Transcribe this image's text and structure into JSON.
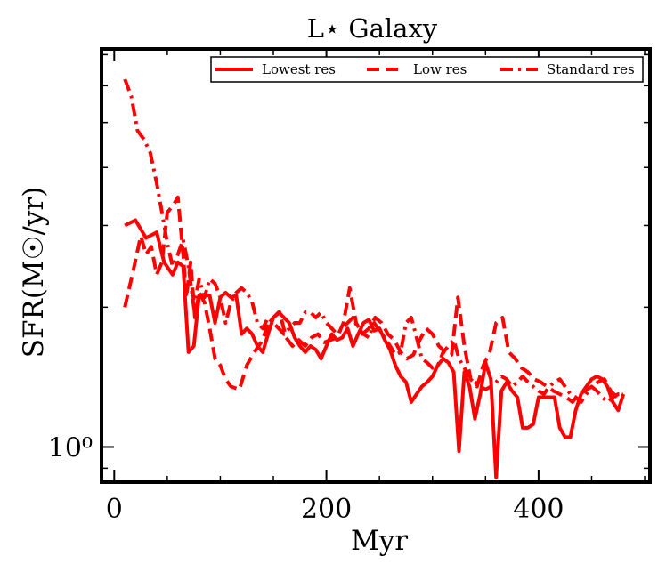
{
  "chart_data": {
    "type": "line",
    "title": "L⋆ Galaxy",
    "xlabel": "Myr",
    "ylabel": "SFR(M☉/yr)",
    "yscale": "log",
    "xlim": [
      -12,
      505
    ],
    "ylim": [
      0.84,
      7.2
    ],
    "xticks": [
      0,
      200,
      400
    ],
    "xtick_labels": [
      "0",
      "200",
      "400"
    ],
    "yticks": [
      1
    ],
    "ytick_labels": [
      "10⁰"
    ],
    "legend_position": "top-right",
    "line_color": "#ff0000",
    "series": [
      {
        "name": "Lowest res",
        "style": "solid",
        "x": [
          10,
          20,
          30,
          40,
          47,
          55,
          60,
          65,
          70,
          75,
          80,
          85,
          90,
          95,
          100,
          105,
          110,
          115,
          120,
          125,
          130,
          135,
          140,
          145,
          150,
          155,
          160,
          165,
          170,
          175,
          180,
          185,
          190,
          195,
          200,
          205,
          210,
          215,
          220,
          225,
          230,
          235,
          240,
          245,
          250,
          255,
          260,
          265,
          270,
          275,
          280,
          285,
          290,
          295,
          300,
          305,
          310,
          315,
          320,
          325,
          330,
          335,
          340,
          345,
          350,
          355,
          360,
          365,
          370,
          375,
          380,
          385,
          390,
          395,
          400,
          405,
          410,
          415,
          420,
          425,
          430,
          435,
          440,
          445,
          450,
          455,
          460,
          465,
          470,
          475,
          480
        ],
        "values": [
          3.0,
          3.08,
          2.82,
          2.9,
          2.5,
          2.35,
          2.5,
          2.45,
          1.6,
          1.65,
          2.12,
          2.12,
          2.12,
          1.85,
          2.1,
          2.15,
          2.1,
          2.12,
          1.75,
          1.8,
          1.75,
          1.65,
          1.6,
          1.75,
          1.9,
          1.95,
          1.9,
          1.85,
          1.72,
          1.65,
          1.6,
          1.65,
          1.62,
          1.55,
          1.65,
          1.75,
          1.7,
          1.72,
          1.8,
          1.65,
          1.75,
          1.85,
          1.88,
          1.78,
          1.8,
          1.7,
          1.62,
          1.5,
          1.42,
          1.38,
          1.25,
          1.3,
          1.35,
          1.38,
          1.42,
          1.5,
          1.55,
          1.52,
          1.45,
          0.98,
          1.45,
          1.35,
          1.15,
          1.3,
          1.52,
          1.4,
          0.86,
          1.32,
          1.38,
          1.32,
          1.28,
          1.1,
          1.1,
          1.12,
          1.28,
          1.28,
          1.28,
          1.28,
          1.1,
          1.05,
          1.05,
          1.2,
          1.3,
          1.35,
          1.4,
          1.42,
          1.4,
          1.35,
          1.25,
          1.2,
          1.3
        ]
      },
      {
        "name": "Low res",
        "style": "dashed",
        "x": [
          10,
          18,
          25,
          30,
          35,
          40,
          45,
          50,
          55,
          60,
          65,
          68,
          72,
          76,
          80,
          85,
          90,
          95,
          100,
          105,
          110,
          118,
          125,
          132,
          140,
          145,
          150,
          156,
          162,
          168,
          174,
          180,
          186,
          192,
          198,
          204,
          210,
          216,
          222,
          228,
          234,
          240,
          246,
          252,
          258,
          264,
          270,
          276,
          282,
          288,
          294,
          300,
          306,
          312,
          318,
          324,
          330,
          336,
          342,
          348,
          354,
          360,
          366,
          372,
          378,
          384,
          390,
          396,
          402,
          408,
          414,
          420,
          426,
          432,
          438,
          444,
          450,
          456,
          462,
          468,
          474,
          480
        ],
        "values": [
          2.0,
          2.4,
          2.85,
          2.6,
          2.7,
          2.35,
          2.5,
          3.2,
          3.3,
          3.45,
          2.6,
          2.1,
          2.5,
          1.9,
          2.15,
          2.05,
          1.8,
          1.55,
          1.5,
          1.4,
          1.35,
          1.33,
          1.5,
          1.6,
          1.7,
          1.85,
          1.9,
          1.95,
          1.72,
          1.65,
          1.7,
          1.65,
          1.72,
          1.75,
          1.68,
          1.7,
          1.72,
          1.85,
          2.2,
          1.85,
          1.75,
          1.8,
          1.9,
          1.85,
          1.75,
          1.7,
          1.6,
          1.55,
          1.58,
          1.7,
          1.8,
          1.75,
          1.65,
          1.6,
          1.58,
          2.1,
          1.65,
          1.4,
          1.35,
          1.5,
          1.6,
          1.85,
          1.9,
          1.6,
          1.55,
          1.48,
          1.45,
          1.4,
          1.38,
          1.35,
          1.32,
          1.3,
          1.28,
          1.25,
          1.3,
          1.32,
          1.35,
          1.38,
          1.4,
          1.32,
          1.28,
          1.3
        ]
      },
      {
        "name": "Standard res",
        "style": "dashdot",
        "x": [
          10,
          16,
          22,
          28,
          34,
          40,
          45,
          50,
          55,
          60,
          65,
          70,
          75,
          80,
          85,
          90,
          95,
          100,
          105,
          110,
          115,
          120,
          125,
          130,
          135,
          140,
          145,
          150,
          155,
          160,
          165,
          170,
          175,
          180,
          185,
          190,
          195,
          200,
          205,
          210,
          215,
          220,
          225,
          230,
          235,
          240,
          245,
          250,
          255,
          260,
          265,
          270,
          275,
          280,
          285,
          290,
          295,
          300,
          305,
          310,
          315,
          320,
          325,
          330,
          335,
          340,
          345,
          350,
          355,
          360,
          365,
          370,
          375,
          380,
          385,
          390,
          395,
          400,
          405,
          410,
          415,
          420,
          425,
          430,
          435,
          440,
          445,
          450,
          455,
          460,
          465,
          470,
          475,
          480
        ],
        "values": [
          6.2,
          5.7,
          4.8,
          4.6,
          4.3,
          3.7,
          3.2,
          2.75,
          2.45,
          2.6,
          2.8,
          2.45,
          2.0,
          2.3,
          2.1,
          2.3,
          2.25,
          2.1,
          1.85,
          2.05,
          2.15,
          2.2,
          2.15,
          2.05,
          1.85,
          1.8,
          1.9,
          1.85,
          1.8,
          1.75,
          1.8,
          1.85,
          1.85,
          1.95,
          1.95,
          1.9,
          1.95,
          1.85,
          1.8,
          1.75,
          1.8,
          1.85,
          1.9,
          1.8,
          1.75,
          1.72,
          1.85,
          1.78,
          1.72,
          1.65,
          1.58,
          1.6,
          1.85,
          1.9,
          1.72,
          1.55,
          1.52,
          1.48,
          1.5,
          1.6,
          1.65,
          1.7,
          1.55,
          1.48,
          1.42,
          1.38,
          1.35,
          1.33,
          1.35,
          1.38,
          1.42,
          1.4,
          1.35,
          1.38,
          1.42,
          1.38,
          1.35,
          1.32,
          1.3,
          1.35,
          1.38,
          1.4,
          1.35,
          1.3,
          1.28,
          1.25,
          1.3,
          1.35,
          1.32,
          1.28,
          1.25,
          1.28,
          1.3,
          1.3
        ]
      }
    ]
  }
}
